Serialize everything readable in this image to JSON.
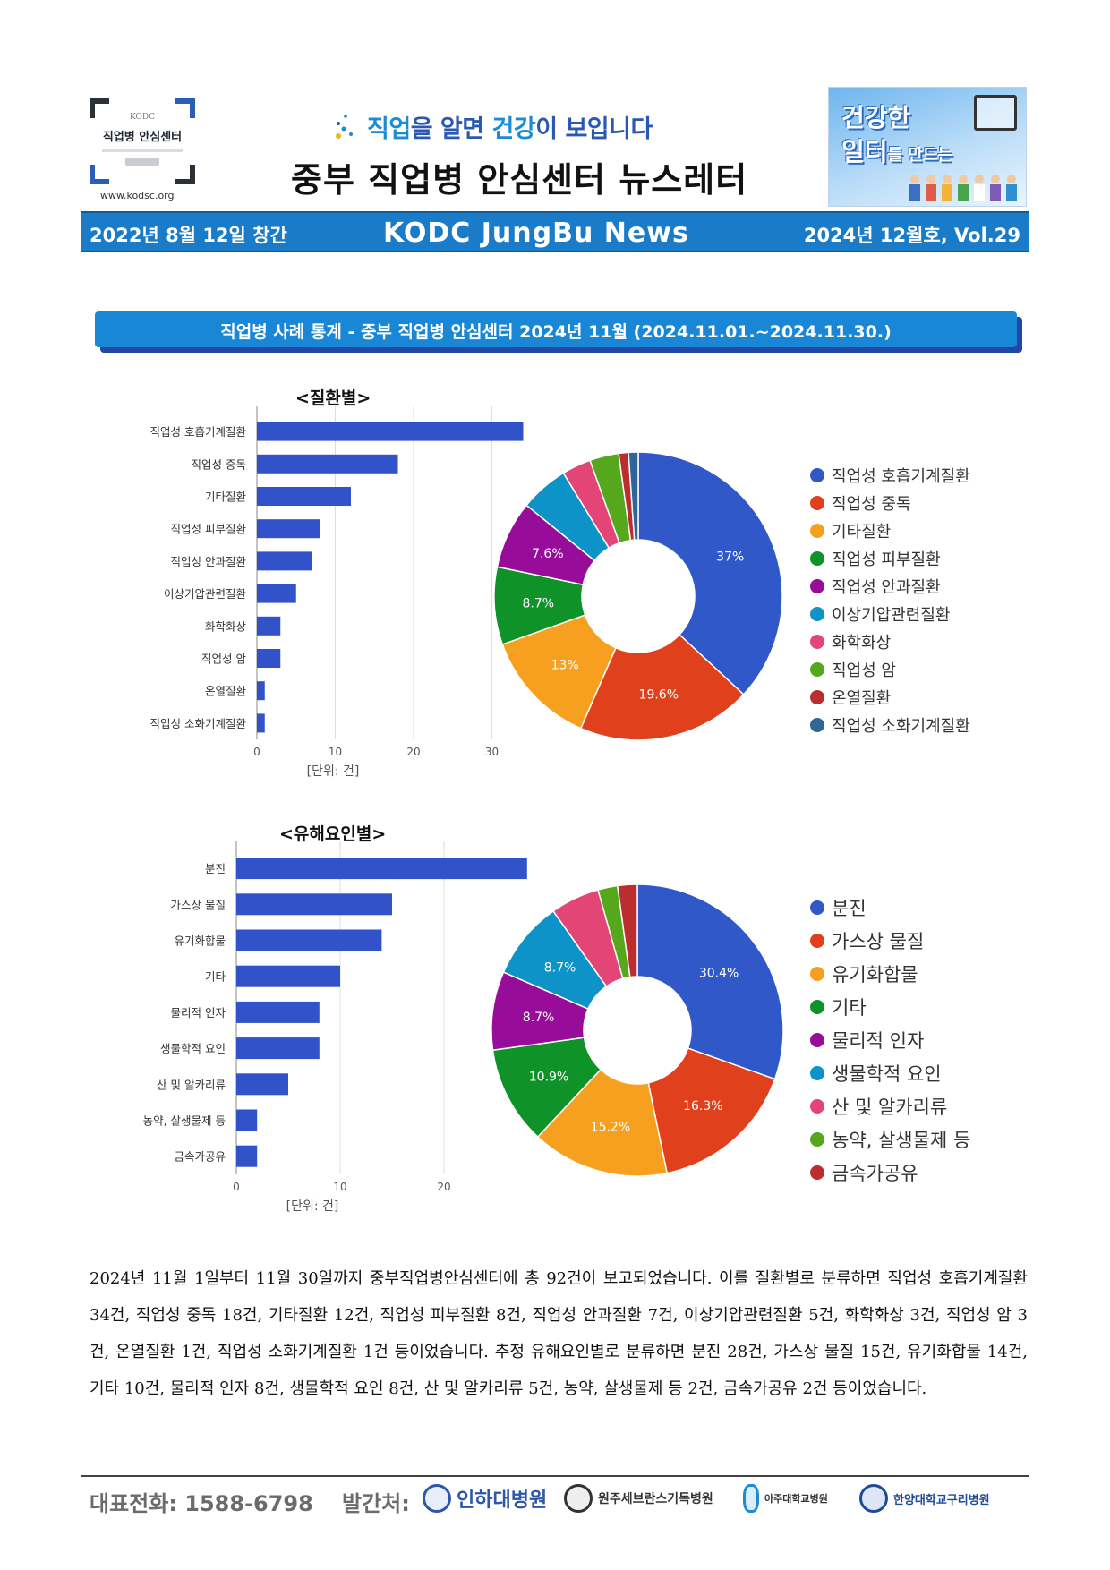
{
  "header": {
    "logo": {
      "org": "KODC",
      "name": "직업병 안심센터"
    },
    "website": "www.kodsc.org",
    "tagline": {
      "p1": "직업",
      "p2": "을 알면 ",
      "p3": "건강",
      "p4": "이 보입니다"
    },
    "title": "중부 직업병 안심센터 뉴스레터",
    "promo": {
      "line1": "건강한",
      "line2a": "일터",
      "line2b": "를 만드는"
    }
  },
  "banner": {
    "founded": "2022년 8월 12일 창간",
    "name": "KODC JungBu News",
    "issue": "2024년 12월호, Vol.29"
  },
  "section_title": "직업병 사례 통계 - 중부 직업병 안심센터  2024년 11월 (2024.11.01.~2024.11.30.)",
  "colors": [
    "#3058c9",
    "#e0401c",
    "#f7a020",
    "#0f9228",
    "#970c99",
    "#0e93c8",
    "#e34676",
    "#55a81c",
    "#bb2d2e",
    "#2f6597"
  ],
  "chart_data": [
    {
      "type": "bar",
      "title": "<질환별>",
      "orientation": "horizontal",
      "categories": [
        "직업성 호흡기계질환",
        "직업성 중독",
        "기타질환",
        "직업성 피부질환",
        "직업성 안과질환",
        "이상기압관련질환",
        "화학화상",
        "직업성 암",
        "온열질환",
        "직업성 소화기계질환"
      ],
      "values": [
        34,
        18,
        12,
        8,
        7,
        5,
        3,
        3,
        1,
        1
      ],
      "xlim": [
        0,
        35
      ],
      "xticks": [
        0,
        10,
        20,
        30
      ],
      "xlabel": "[단위: 건]",
      "grid": true
    },
    {
      "type": "pie",
      "donut": true,
      "categories": [
        "직업성 호흡기계질환",
        "직업성 중독",
        "기타질환",
        "직업성 피부질환",
        "직업성 안과질환",
        "이상기압관련질환",
        "화학화상",
        "직업성 암",
        "온열질환",
        "직업성 소화기계질환"
      ],
      "values": [
        34,
        18,
        12,
        8,
        7,
        5,
        3,
        3,
        1,
        1
      ],
      "labels": [
        "37%",
        "19.6%",
        "13%",
        "8.7%",
        "7.6%",
        "",
        "",
        "",
        "",
        ""
      ],
      "legend": "right"
    },
    {
      "type": "bar",
      "title": "<유해요인별>",
      "orientation": "horizontal",
      "categories": [
        "분진",
        "가스상 물질",
        "유기화합물",
        "기타",
        "물리적 인자",
        "생물학적 요인",
        "산 및 알카리류",
        "농약, 살생물제 등",
        "금속가공유"
      ],
      "values": [
        28,
        15,
        14,
        10,
        8,
        8,
        5,
        2,
        2
      ],
      "xlim": [
        0,
        28
      ],
      "xticks": [
        0,
        10,
        20
      ],
      "xlabel": "[단위: 건]",
      "grid": true
    },
    {
      "type": "pie",
      "donut": true,
      "categories": [
        "분진",
        "가스상 물질",
        "유기화합물",
        "기타",
        "물리적 인자",
        "생물학적 요인",
        "산 및 알카리류",
        "농약, 살생물제 등",
        "금속가공유"
      ],
      "values": [
        28,
        15,
        14,
        10,
        8,
        8,
        5,
        2,
        2
      ],
      "labels": [
        "30.4%",
        "16.3%",
        "15.2%",
        "10.9%",
        "8.7%",
        "8.7%",
        "",
        "",
        ""
      ],
      "legend": "right"
    }
  ],
  "summary": "2024년 11월 1일부터 11월 30일까지 중부직업병안심센터에 총 92건이 보고되었습니다. 이를 질환별로 분류하면 직업성 호흡기계질환 34건, 직업성 중독 18건, 기타질환 12건, 직업성 피부질환 8건, 직업성 안과질환 7건, 이상기압관련질환 5건, 화학화상 3건, 직업성 암 3건, 온열질환 1건, 직업성 소화기계질환 1건 등이었습니다. 추정 유해요인별로 분류하면 분진 28건, 가스상 물질 15건, 유기화합물 14건, 기타 10건, 물리적 인자 8건, 생물학적 요인 8건, 산 및 알카리류 5건, 농약, 살생물제 등 2건, 금속가공유 2건 등이었습니다.",
  "footer": {
    "phone": "대표전화: 1588-6798",
    "publisher_label": "발간처:",
    "hospitals": [
      "인하대병원",
      "원주세브란스기독병원",
      "아주대학교병원",
      "한양대학교구리병원"
    ]
  }
}
